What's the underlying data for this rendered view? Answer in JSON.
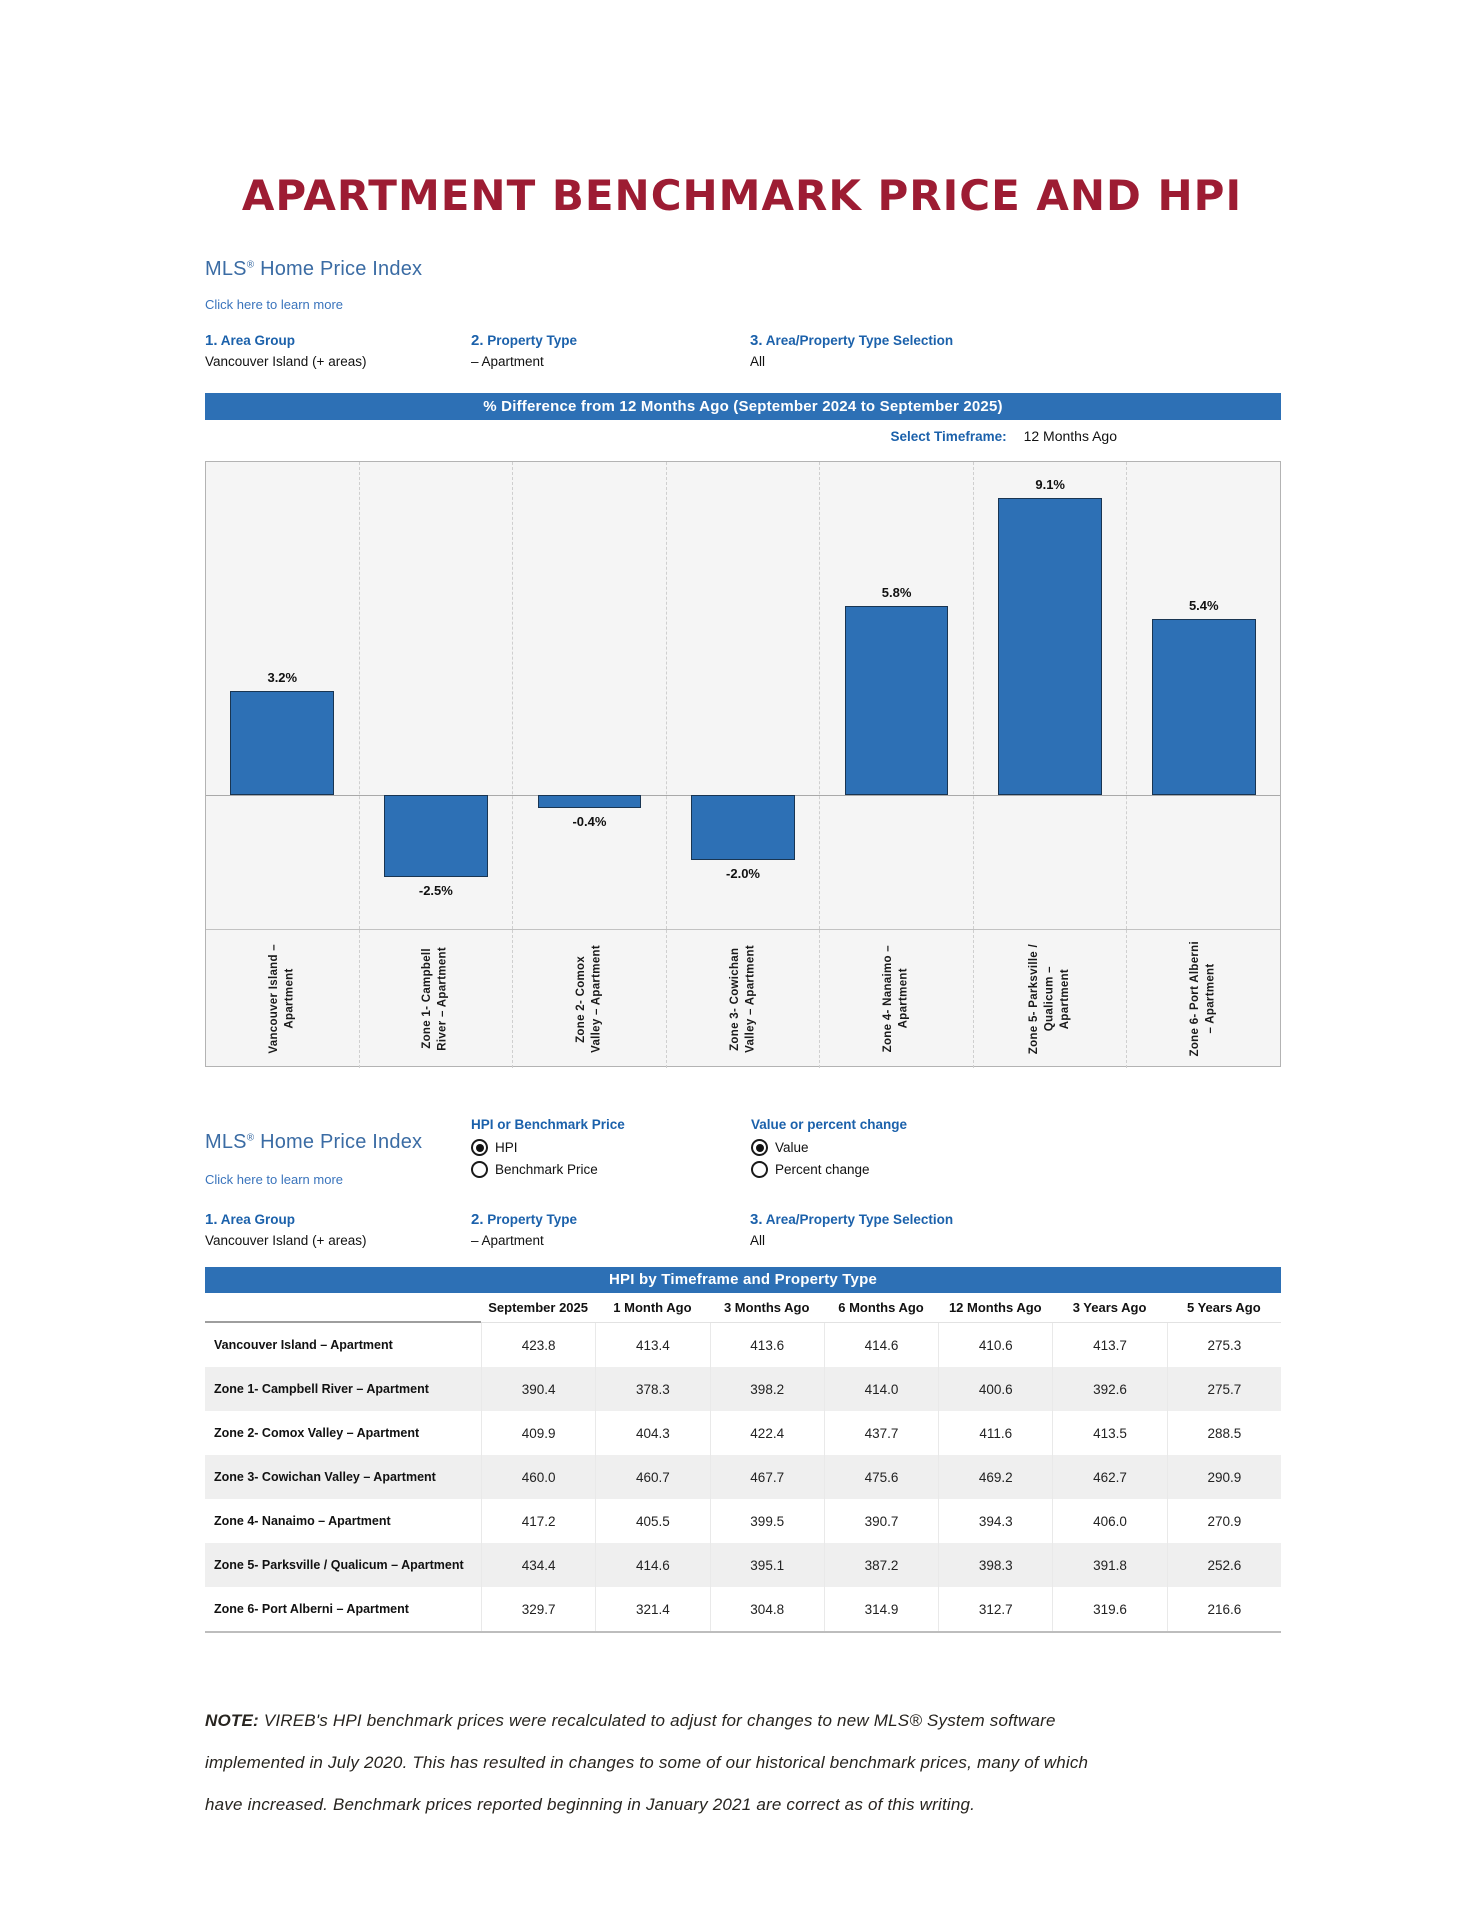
{
  "page_title": "APARTMENT BENCHMARK PRICE AND HPI",
  "colors": {
    "brand_maroon": "#9d1c33",
    "banner_blue": "#2d70b5",
    "bar_blue": "#2d70b5",
    "bar_border": "#193552",
    "heading_blue": "#3b6ca4",
    "label_blue": "#1b61ab"
  },
  "section_chart": {
    "mls_heading": {
      "brand": "MLS",
      "reg": "®",
      "rest": " Home Price Index"
    },
    "learn_more": "Click here to learn more",
    "filters": [
      {
        "number": "1.",
        "label": " Area Group",
        "value": "Vancouver Island (+ areas)"
      },
      {
        "number": "2.",
        "label": " Property Type",
        "value": "– Apartment"
      },
      {
        "number": "3.",
        "label": " Area/Property Type Selection",
        "value": "All"
      }
    ],
    "timeframe_label": "Select Timeframe:",
    "timeframe_value": "12 Months Ago"
  },
  "section_table": {
    "mls_heading": {
      "brand": "MLS",
      "reg": "®",
      "rest": " Home Price Index"
    },
    "learn_more": "Click here to learn more",
    "radio_groups": [
      {
        "label": "HPI or Benchmark Price",
        "options": [
          {
            "label": "HPI",
            "selected": true
          },
          {
            "label": "Benchmark Price",
            "selected": false
          }
        ]
      },
      {
        "label": "Value or percent change",
        "options": [
          {
            "label": "Value",
            "selected": true
          },
          {
            "label": "Percent change",
            "selected": false
          }
        ]
      }
    ],
    "filters": [
      {
        "number": "1.",
        "label": " Area Group",
        "value": "Vancouver Island (+ areas)"
      },
      {
        "number": "2.",
        "label": " Property Type",
        "value": "– Apartment"
      },
      {
        "number": "3.",
        "label": " Area/Property Type Selection",
        "value": "All"
      }
    ]
  },
  "chart_data": [
    {
      "type": "bar",
      "title": "% Difference from 12 Months Ago (September 2024 to September 2025)",
      "categories": [
        "Vancouver Island –\nApartment",
        "Zone 1- Campbell\nRiver – Apartment",
        "Zone 2- Comox\nValley – Apartment",
        "Zone 3- Cowichan\nValley – Apartment",
        "Zone 4- Nanaimo –\nApartment",
        "Zone 5- Parksville /\nQualicum –\nApartment",
        "Zone 6- Port Alberni\n– Apartment"
      ],
      "values": [
        3.2,
        -2.5,
        -0.4,
        -2.0,
        5.8,
        9.1,
        5.4
      ],
      "value_labels": [
        "3.2%",
        "-2.5%",
        "-0.4%",
        "-2.0%",
        "5.8%",
        "9.1%",
        "5.4%"
      ],
      "xlabel": "",
      "ylabel": "",
      "ylim": [
        -4.1,
        10.2
      ],
      "grid": "vertical-dashed",
      "legend": "none",
      "bar_color": "#2d70b5",
      "bar_border": "#193552"
    },
    {
      "type": "table",
      "title": "HPI by Timeframe and Property Type",
      "columns": [
        "September 2025",
        "1 Month Ago",
        "3 Months Ago",
        "6 Months Ago",
        "12 Months Ago",
        "3 Years Ago",
        "5 Years Ago"
      ],
      "rows": [
        {
          "label": "Vancouver Island – Apartment",
          "values": [
            "423.8",
            "413.4",
            "413.6",
            "414.6",
            "410.6",
            "413.7",
            "275.3"
          ]
        },
        {
          "label": "Zone 1- Campbell River – Apartment",
          "values": [
            "390.4",
            "378.3",
            "398.2",
            "414.0",
            "400.6",
            "392.6",
            "275.7"
          ]
        },
        {
          "label": "Zone 2- Comox Valley – Apartment",
          "values": [
            "409.9",
            "404.3",
            "422.4",
            "437.7",
            "411.6",
            "413.5",
            "288.5"
          ]
        },
        {
          "label": "Zone 3- Cowichan Valley – Apartment",
          "values": [
            "460.0",
            "460.7",
            "467.7",
            "475.6",
            "469.2",
            "462.7",
            "290.9"
          ]
        },
        {
          "label": "Zone 4- Nanaimo – Apartment",
          "values": [
            "417.2",
            "405.5",
            "399.5",
            "390.7",
            "394.3",
            "406.0",
            "270.9"
          ]
        },
        {
          "label": "Zone 5- Parksville / Qualicum – Apartment",
          "values": [
            "434.4",
            "414.6",
            "395.1",
            "387.2",
            "398.3",
            "391.8",
            "252.6"
          ]
        },
        {
          "label": "Zone 6- Port Alberni – Apartment",
          "values": [
            "329.7",
            "321.4",
            "304.8",
            "314.9",
            "312.7",
            "319.6",
            "216.6"
          ]
        }
      ]
    }
  ],
  "note": {
    "prefix": "NOTE:",
    "lines": [
      " VIREB's HPI benchmark prices were recalculated to adjust for changes to new MLS® System software",
      "implemented in July 2020. This has resulted in changes to some of our historical benchmark prices, many of which",
      "have increased. Benchmark prices reported beginning in January 2021 are correct as of this writing."
    ]
  }
}
